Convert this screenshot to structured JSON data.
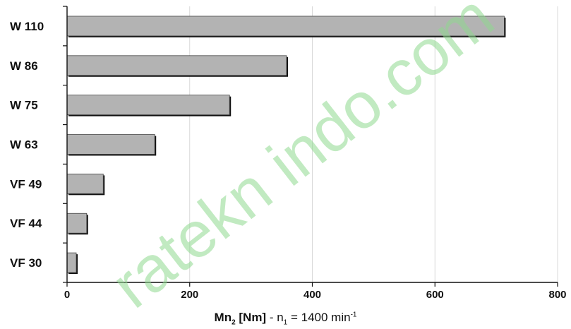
{
  "chart_data": {
    "type": "bar",
    "orientation": "horizontal",
    "categories": [
      "W 110",
      "W 86",
      "W 75",
      "W 63",
      "VF 49",
      "VF 44",
      "VF 30"
    ],
    "values": [
      713,
      358,
      265,
      143,
      59,
      32,
      15
    ],
    "xlim": [
      0,
      800
    ],
    "xticks": [
      "0",
      "200",
      "400",
      "600",
      "800"
    ],
    "xlabel": {
      "main": "Mn",
      "main_sub": "2",
      "unit": "[Nm]",
      "rest": "- n",
      "rest_sub": "1",
      "value": "= 1400 min",
      "value_sup": "-1"
    },
    "grid": "vertical",
    "bar_color": "#b3b3b3",
    "grid_color": "#d9d9d9"
  },
  "watermark": "ratekn indo.com"
}
